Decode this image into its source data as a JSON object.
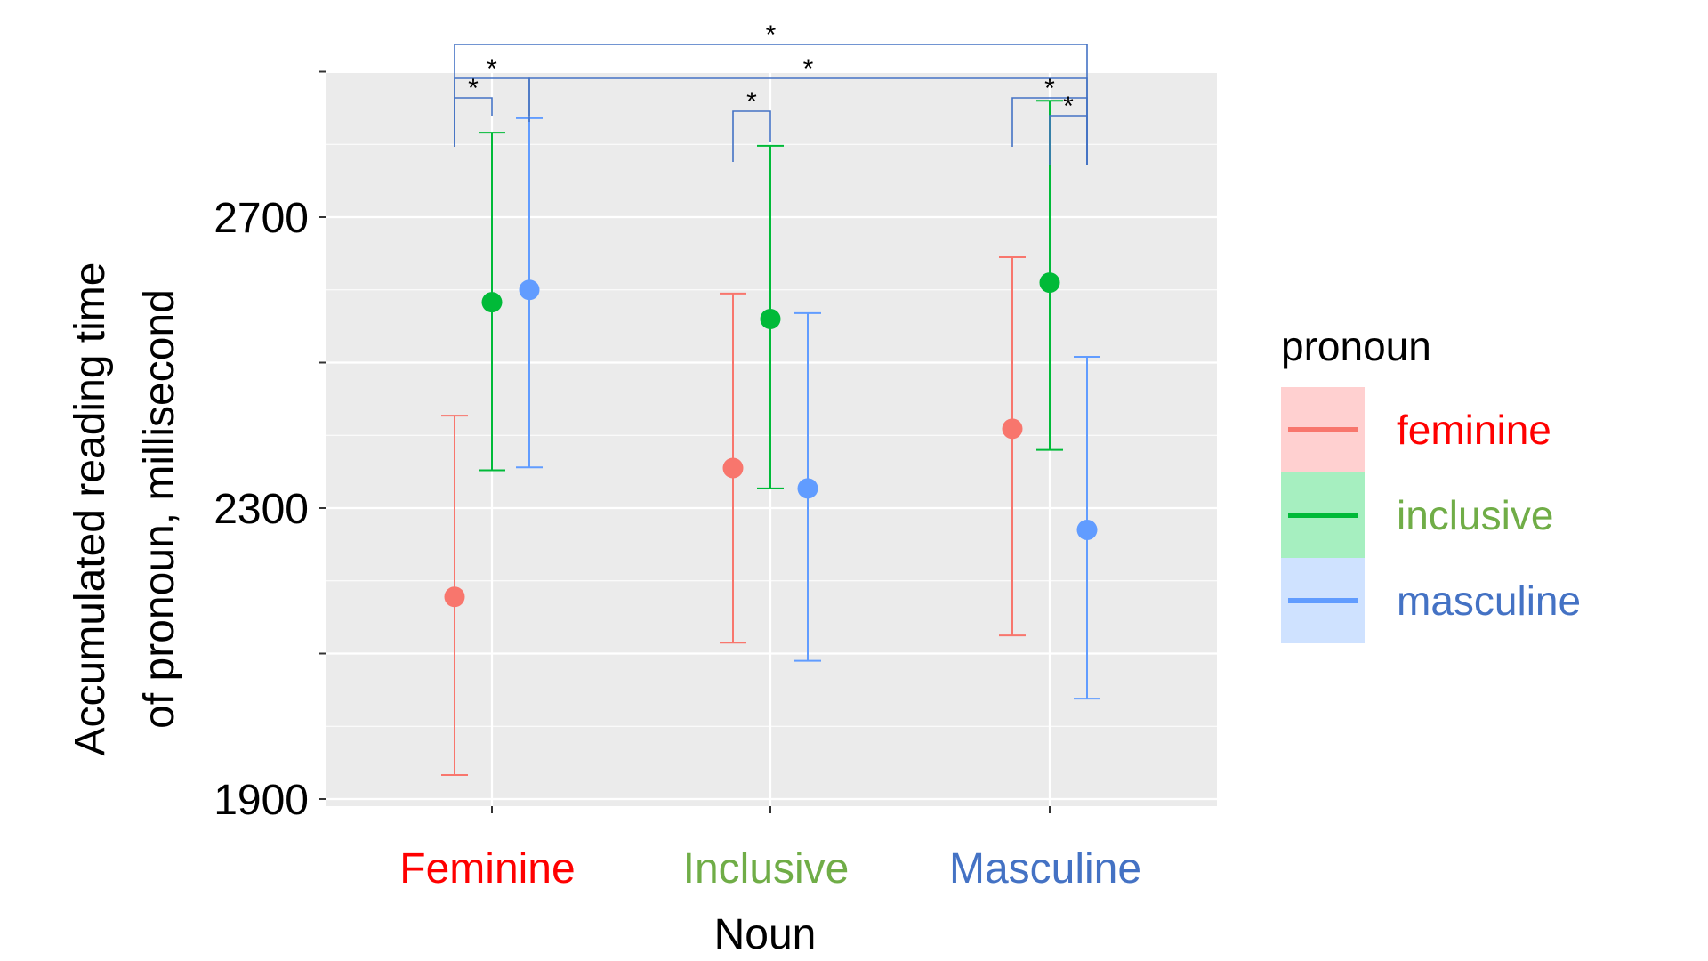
{
  "chart_data": {
    "type": "scatter",
    "xlabel": "Noun",
    "ylabel": [
      "Accumulated reading time",
      "of pronoun, millisecond"
    ],
    "ylim": [
      1900,
      2900
    ],
    "yticks": [
      1900,
      2300,
      2700
    ],
    "grid": true,
    "categories": [
      "Feminine",
      "Inclusive",
      "Masculine"
    ],
    "category_colors": [
      "#ff0000",
      "#70ad47",
      "#4472c4"
    ],
    "legend": {
      "title": "pronoun",
      "position": "right",
      "entries": [
        {
          "name": "feminine",
          "color": "#f8766d",
          "label_color": "#ff0000"
        },
        {
          "name": "inclusive",
          "color": "#00ba38",
          "label_color": "#70ad47"
        },
        {
          "name": "masculine",
          "color": "#619cff",
          "label_color": "#4472c4"
        }
      ]
    },
    "series": [
      {
        "name": "feminine",
        "color": "#f8766d",
        "values": [
          2178,
          2355,
          2409
        ],
        "lower": [
          1933,
          2115,
          2125
        ],
        "upper": [
          2427,
          2595,
          2645
        ]
      },
      {
        "name": "inclusive",
        "color": "#00ba38",
        "values": [
          2583,
          2560,
          2610
        ],
        "lower": [
          2352,
          2327,
          2380
        ],
        "upper": [
          2816,
          2798,
          2860
        ]
      },
      {
        "name": "masculine",
        "color": "#619cff",
        "values": [
          2600,
          2327,
          2270
        ],
        "lower": [
          2356,
          2090,
          2038
        ],
        "upper": [
          2836,
          2568,
          2508
        ]
      }
    ],
    "significance_annotations": [
      {
        "label": "*",
        "from": [
          "Feminine",
          "feminine"
        ],
        "to": [
          "Masculine",
          "masculine"
        ]
      },
      {
        "label": "*",
        "from": [
          "Feminine",
          "masculine"
        ],
        "to": [
          "Masculine",
          "masculine"
        ]
      },
      {
        "label": "*",
        "from": [
          "Feminine",
          "feminine"
        ],
        "to": [
          "Feminine",
          "masculine"
        ]
      },
      {
        "label": "*",
        "from": [
          "Feminine",
          "feminine"
        ],
        "to": [
          "Feminine",
          "inclusive"
        ]
      },
      {
        "label": "*",
        "from": [
          "Inclusive",
          "feminine"
        ],
        "to": [
          "Inclusive",
          "inclusive"
        ]
      },
      {
        "label": "*",
        "from": [
          "Masculine",
          "feminine"
        ],
        "to": [
          "Masculine",
          "masculine"
        ]
      },
      {
        "label": "*",
        "from": [
          "Masculine",
          "inclusive"
        ],
        "to": [
          "Masculine",
          "masculine"
        ]
      }
    ]
  }
}
